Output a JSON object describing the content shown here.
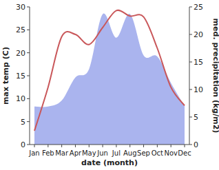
{
  "chart_data": {
    "type": "line",
    "x_label": "date (month)",
    "y_label": "max temp (C)",
    "y2_label": "med. precipitation (kg/m2)",
    "categories": [
      "Jan",
      "Feb",
      "Mar",
      "Apr",
      "May",
      "Jun",
      "Jul",
      "Aug",
      "Sep",
      "Oct",
      "Nov",
      "Dec"
    ],
    "series": [
      {
        "name": "med. precipitation",
        "type": "area",
        "axis": "y2",
        "color": "#aab4ee",
        "values": [
          6.9,
          6.9,
          8,
          12.2,
          13.7,
          23.7,
          19.4,
          23.7,
          16.2,
          16,
          11.2,
          7
        ]
      },
      {
        "name": "max temp",
        "type": "line",
        "color": "#c9575a",
        "values": [
          3,
          12.5,
          23.5,
          24,
          21.8,
          25.5,
          29.2,
          28,
          27.8,
          21,
          12.5,
          8.5
        ]
      }
    ],
    "ylim": [
      0,
      30
    ],
    "yticks": [
      0,
      5,
      10,
      15,
      20,
      25,
      30
    ],
    "y2lim": [
      0,
      25
    ],
    "y2ticks": [
      0,
      5,
      10,
      15,
      20,
      25
    ],
    "grid": false
  }
}
